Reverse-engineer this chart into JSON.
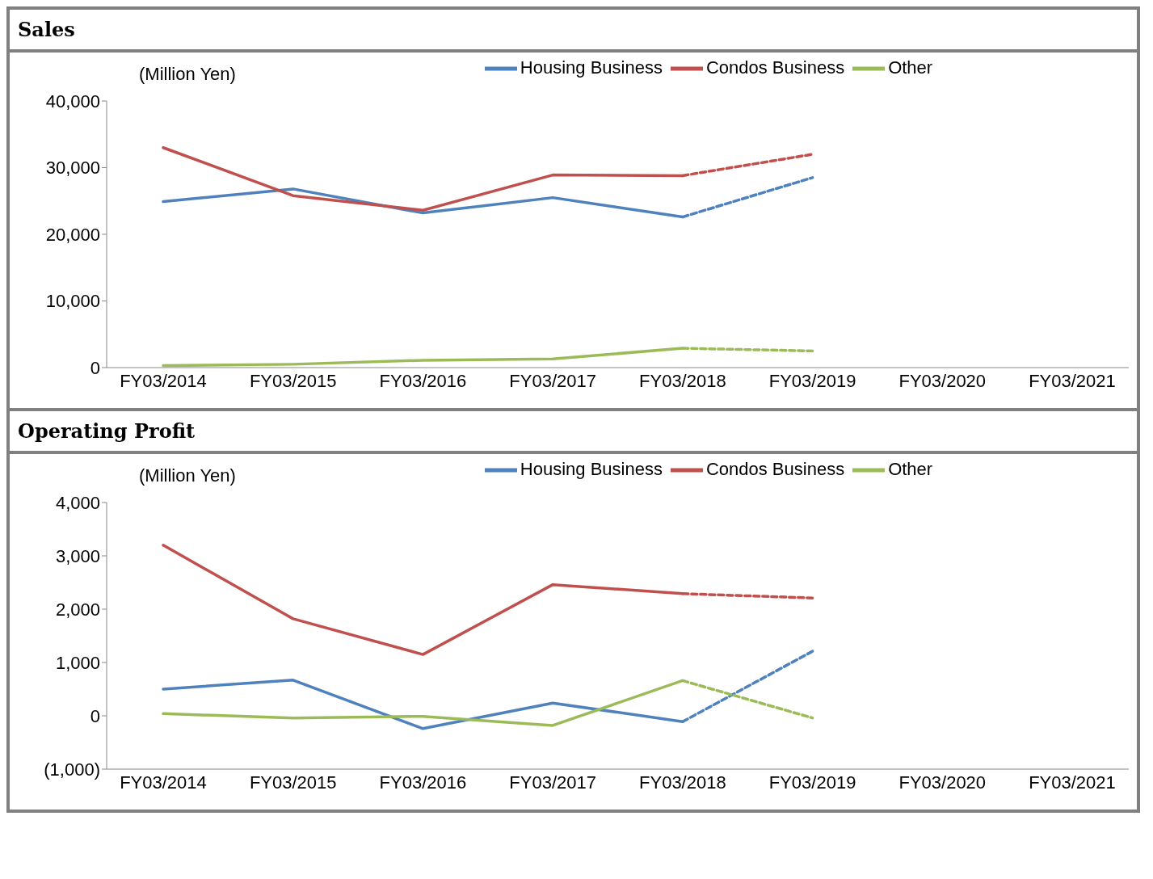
{
  "chart_data": [
    {
      "type": "line",
      "title": "Sales",
      "ylabel": "(Million Yen)",
      "categories": [
        "FY03/2014",
        "FY03/2015",
        "FY03/2016",
        "FY03/2017",
        "FY03/2018",
        "FY03/2019",
        "FY03/2020",
        "FY03/2021"
      ],
      "ylim": [
        0,
        40000
      ],
      "yticks": [
        0,
        {
          "value": 10000,
          "label": "10,000"
        },
        {
          "value": 20000,
          "label": "20,000"
        },
        {
          "value": 30000,
          "label": "30,000"
        },
        {
          "value": 40000,
          "label": "40,000"
        }
      ],
      "grid": false,
      "legend": "top",
      "marker": "none",
      "series": [
        {
          "name": "Housing Business",
          "color": "#4f81bd",
          "line_style": "solid",
          "values": [
            24900,
            26800,
            23200,
            25500,
            22600,
            null,
            null,
            null
          ]
        },
        {
          "name": "Condos Business",
          "color": "#c0504d",
          "line_style": "solid",
          "values": [
            33000,
            25800,
            23600,
            28900,
            28800,
            null,
            null,
            null
          ]
        },
        {
          "name": "Other",
          "color": "#9bbb59",
          "line_style": "solid",
          "values": [
            300,
            500,
            1100,
            1300,
            2900,
            null,
            null,
            null
          ]
        },
        {
          "color": "#4f81bd",
          "line_style": "dashed",
          "values": [
            null,
            null,
            null,
            null,
            22600,
            28500,
            null,
            null
          ]
        },
        {
          "color": "#c0504d",
          "line_style": "dashed",
          "values": [
            null,
            null,
            null,
            null,
            28800,
            32000,
            null,
            null
          ]
        },
        {
          "color": "#9bbb59",
          "line_style": "dashed",
          "values": [
            null,
            null,
            null,
            null,
            2900,
            2500,
            null,
            null
          ]
        }
      ]
    },
    {
      "type": "line",
      "title": "Operating Profit",
      "ylabel": "(Million Yen)",
      "categories": [
        "FY03/2014",
        "FY03/2015",
        "FY03/2016",
        "FY03/2017",
        "FY03/2018",
        "FY03/2019",
        "FY03/2020",
        "FY03/2021"
      ],
      "ylim": [
        -1000,
        4000
      ],
      "yticks": [
        {
          "value": -1000,
          "label": "(1,000)"
        },
        0,
        {
          "value": 1000,
          "label": "1,000"
        },
        {
          "value": 2000,
          "label": "2,000"
        },
        {
          "value": 3000,
          "label": "3,000"
        },
        {
          "value": 4000,
          "label": "4,000"
        }
      ],
      "grid": false,
      "legend": "top",
      "marker": "none",
      "series": [
        {
          "name": "Housing Business",
          "color": "#4f81bd",
          "line_style": "solid",
          "values": [
            500,
            670,
            -240,
            240,
            -110,
            null,
            null,
            null
          ]
        },
        {
          "name": "Condos Business",
          "color": "#c0504d",
          "line_style": "solid",
          "values": [
            3200,
            1820,
            1150,
            2460,
            2290,
            null,
            null,
            null
          ]
        },
        {
          "name": "Other",
          "color": "#9bbb59",
          "line_style": "solid",
          "values": [
            40,
            -40,
            -10,
            -180,
            660,
            null,
            null,
            null
          ]
        },
        {
          "color": "#4f81bd",
          "line_style": "dashed",
          "values": [
            null,
            null,
            null,
            null,
            -110,
            1210,
            null,
            null
          ]
        },
        {
          "color": "#c0504d",
          "line_style": "dashed",
          "values": [
            null,
            null,
            null,
            null,
            2290,
            2210,
            null,
            null
          ]
        },
        {
          "color": "#9bbb59",
          "line_style": "dashed",
          "values": [
            null,
            null,
            null,
            null,
            660,
            -40,
            null,
            null
          ]
        }
      ]
    }
  ]
}
